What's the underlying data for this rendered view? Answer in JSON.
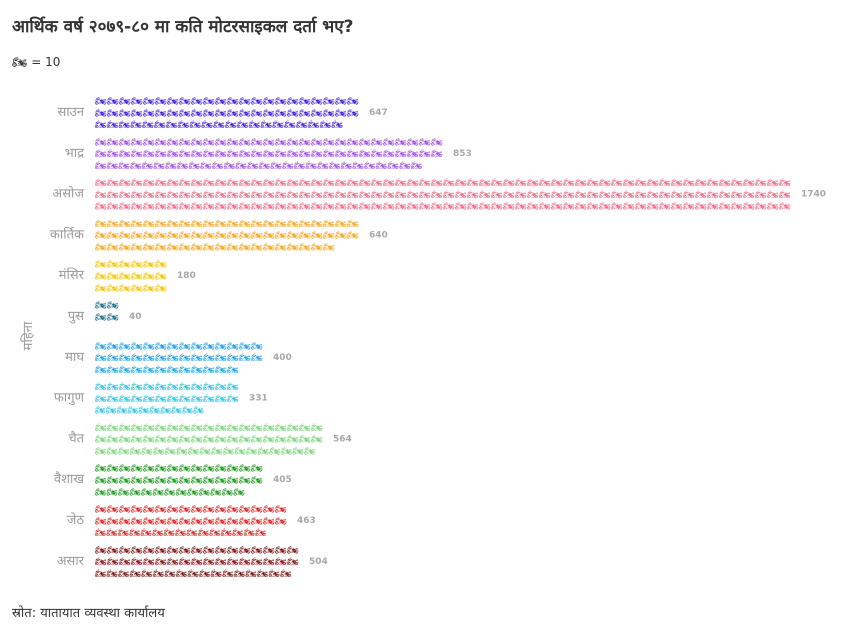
{
  "title": "आर्थिक वर्ष २०७९-८० मा कति मोटरसाइकल दर्ता भए?",
  "legend": {
    "icon": "motorcycle-icon",
    "glyph": "🏍",
    "text": "= 10"
  },
  "source": "स्रोत: यातायात व्यवस्था कार्यालय",
  "chart_data": {
    "type": "bar",
    "subtype": "pictogram",
    "orientation": "horizontal",
    "ylabel": "महिना",
    "unit_per_icon": 10,
    "categories": [
      "साउन",
      "भाद्र",
      "असोज",
      "कार्तिक",
      "मंसिर",
      "पुस",
      "माघ",
      "फागुण",
      "चैत",
      "वैशाख",
      "जेठ",
      "असार"
    ],
    "values": [
      647,
      853,
      1740,
      640,
      180,
      40,
      400,
      331,
      564,
      405,
      463,
      504
    ],
    "colors": [
      "#3b1fd6",
      "#a24fe0",
      "#f06a8a",
      "#f5a623",
      "#f7c500",
      "#1b6f8a",
      "#2a9fe0",
      "#2ec4e6",
      "#7dd37d",
      "#1a9a1a",
      "#d62828",
      "#7a1010"
    ]
  }
}
